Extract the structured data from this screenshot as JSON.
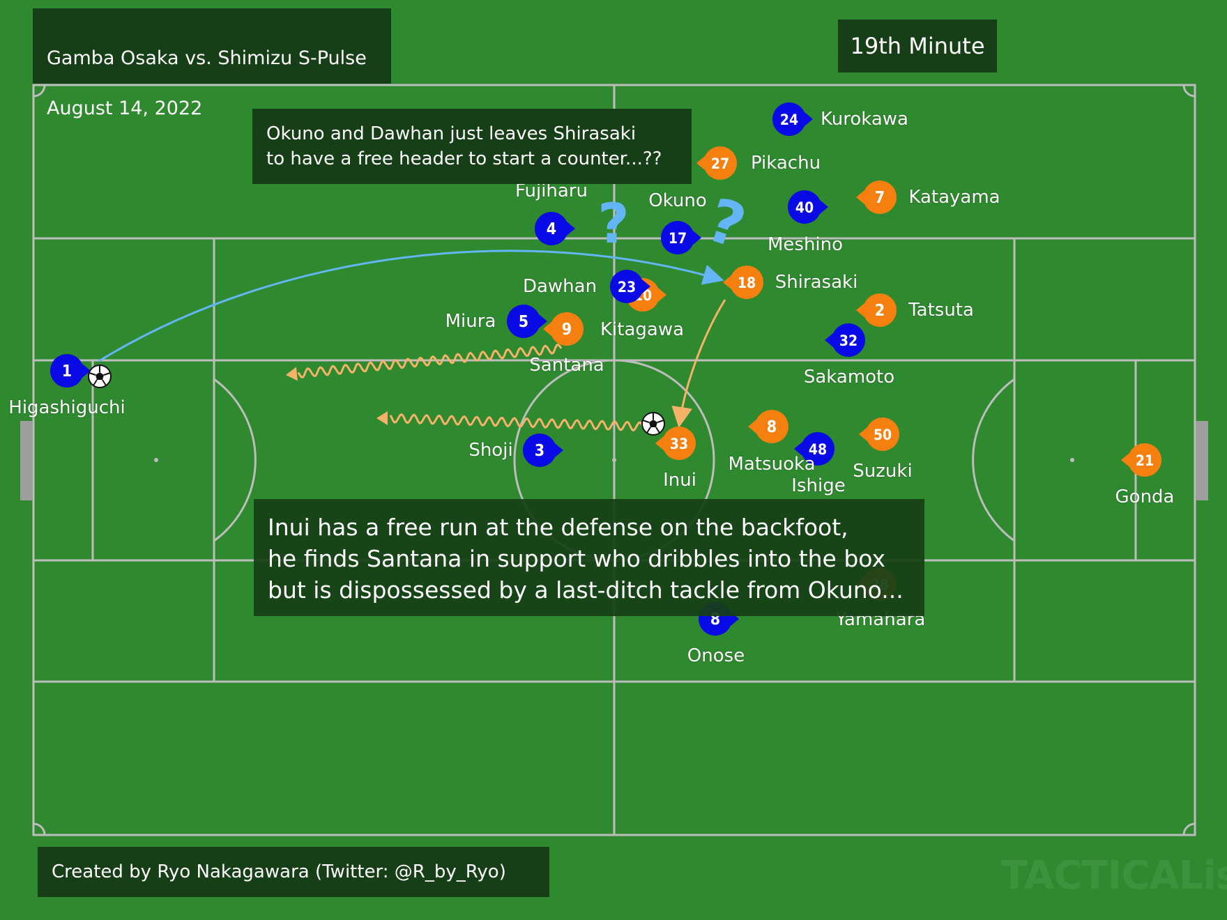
{
  "header": {
    "match_line1": "Gamba Osaka vs. Shimizu S-Pulse",
    "match_line2": "August 14, 2022",
    "minute": "19th Minute"
  },
  "annotations": {
    "note1": "Okuno and Dawhan just leaves Shirasaki\nto have a free header to start a counter...??",
    "note2": "Inui has a free run at the defense on the backfoot,\nhe finds Santana in support who dribbles into the box\nbut is dispossessed by a last-ditch tackle from Okuno..."
  },
  "footer": {
    "credit": "Created by Ryo Nakagawara (Twitter: @R_by_Ryo)",
    "watermark": "TACTICALista"
  },
  "colors": {
    "pitch": "#2f8a2f",
    "lines": "#bdbdbd",
    "gamba": "#0a0ae6",
    "shimizu": "#f57f0f",
    "pass_arrow": "#64b5f6",
    "run_arrow": "#f7b26a",
    "question_mark": "#64b5f6"
  },
  "gamba_players": [
    {
      "number": "1",
      "name": "Higashiguchi"
    },
    {
      "number": "24",
      "name": "Kurokawa"
    },
    {
      "number": "4",
      "name": "Fujiharu"
    },
    {
      "number": "17",
      "name": "Okuno"
    },
    {
      "number": "40",
      "name": "Meshino"
    },
    {
      "number": "23",
      "name": "Dawhan"
    },
    {
      "number": "5",
      "name": "Miura"
    },
    {
      "number": "32",
      "name": "Sakamoto"
    },
    {
      "number": "3",
      "name": "Shoji"
    },
    {
      "number": "48",
      "name": "Ishige"
    },
    {
      "number": "8",
      "name": "Onose"
    }
  ],
  "shimizu_players": [
    {
      "number": "27",
      "name": "Pikachu"
    },
    {
      "number": "7",
      "name": "Katayama"
    },
    {
      "number": "18",
      "name": "Shirasaki"
    },
    {
      "number": "2",
      "name": "Tatsuta"
    },
    {
      "number": "9",
      "name": "Santana"
    },
    {
      "number": "10",
      "name": "Kitagawa"
    },
    {
      "number": "33",
      "name": "Inui"
    },
    {
      "number": "8",
      "name": "Matsuoka"
    },
    {
      "number": "50",
      "name": "Suzuki"
    },
    {
      "number": "28",
      "name": "Yamahara"
    },
    {
      "number": "21",
      "name": "Gonda"
    }
  ]
}
